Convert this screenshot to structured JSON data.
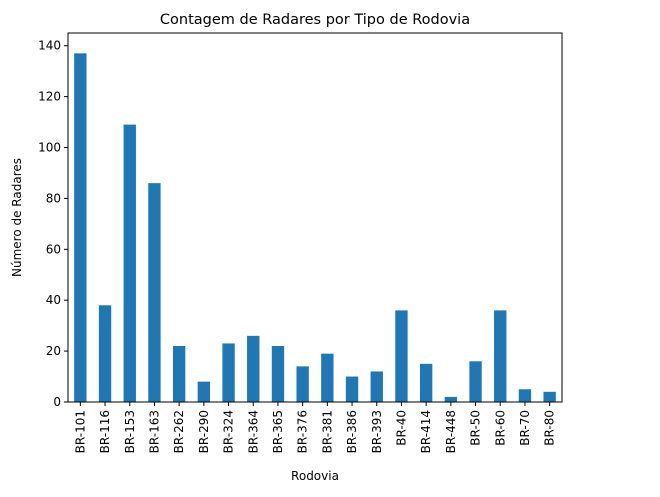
{
  "chart_data": {
    "type": "bar",
    "title": "Contagem de Radares por Tipo de Rodovia",
    "xlabel": "Rodovia",
    "ylabel": "Número de Radares",
    "ylim": [
      0,
      145
    ],
    "yticks": [
      0,
      20,
      40,
      60,
      80,
      100,
      120,
      140
    ],
    "grid": false,
    "bar_color": "#1f77b4",
    "categories": [
      "BR-101",
      "BR-116",
      "BR-153",
      "BR-163",
      "BR-262",
      "BR-290",
      "BR-324",
      "BR-364",
      "BR-365",
      "BR-376",
      "BR-381",
      "BR-386",
      "BR-393",
      "BR-40",
      "BR-414",
      "BR-448",
      "BR-50",
      "BR-60",
      "BR-70",
      "BR-80"
    ],
    "values": [
      137,
      38,
      109,
      86,
      22,
      8,
      23,
      26,
      22,
      14,
      19,
      10,
      12,
      36,
      15,
      2,
      16,
      36,
      5,
      4
    ]
  }
}
